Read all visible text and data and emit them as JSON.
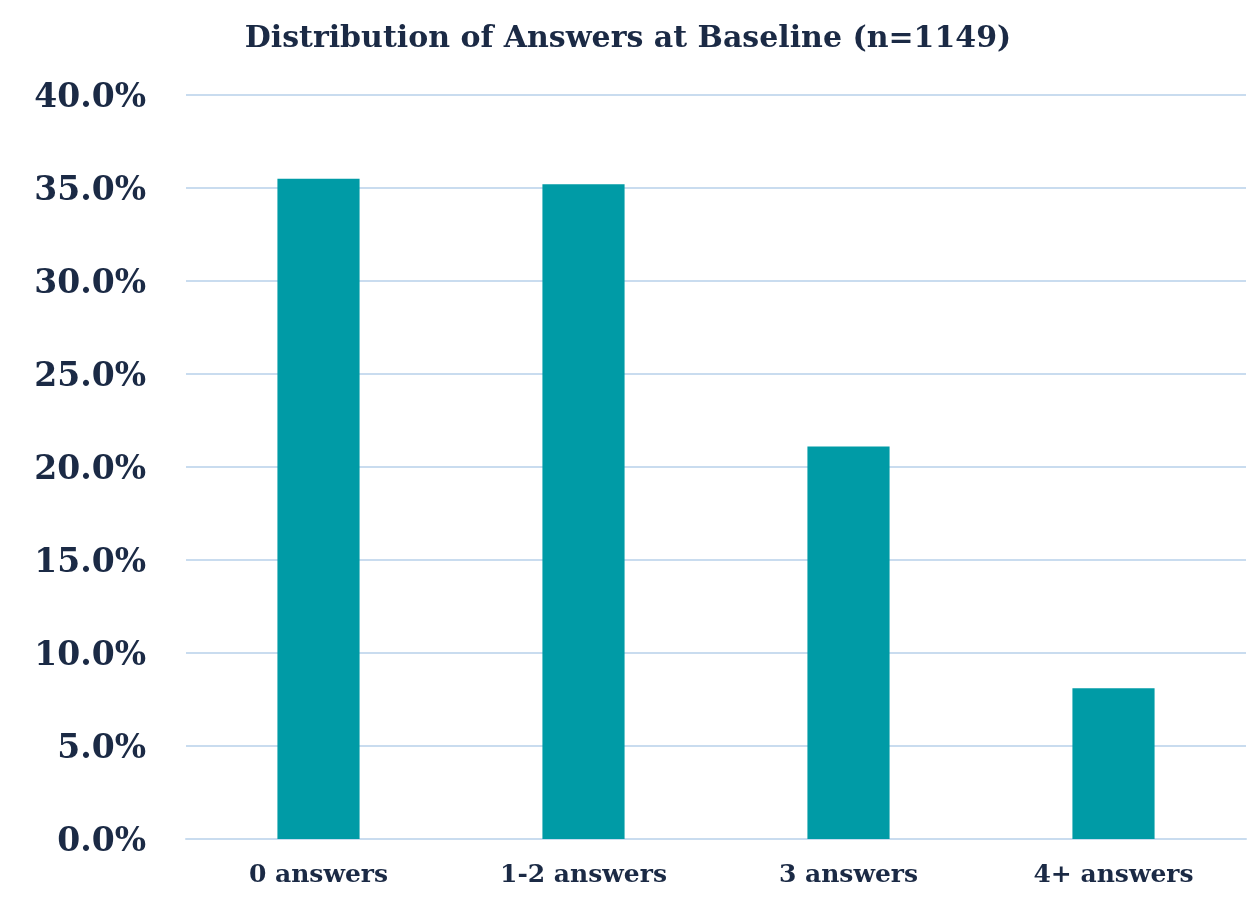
{
  "chart_data": {
    "type": "bar",
    "title": "Distribution of Answers at Baseline (n=1149)",
    "categories": [
      "0 answers",
      "1-2 answers",
      "3 answers",
      "4+ answers"
    ],
    "values": [
      35.5,
      35.2,
      21.1,
      8.1
    ],
    "color": "#009ba6",
    "ylim": [
      0,
      40
    ],
    "yticks": [
      {
        "value": 0,
        "label": "0.0%"
      },
      {
        "value": 5,
        "label": "5.0%"
      },
      {
        "value": 10,
        "label": "10.0%"
      },
      {
        "value": 15,
        "label": "15.0%"
      },
      {
        "value": 20,
        "label": "20.0%"
      },
      {
        "value": 25,
        "label": "25.0%"
      },
      {
        "value": 30,
        "label": "30.0%"
      },
      {
        "value": 35,
        "label": "35.0%"
      },
      {
        "value": 40,
        "label": "40.0%"
      }
    ],
    "grid": true
  }
}
